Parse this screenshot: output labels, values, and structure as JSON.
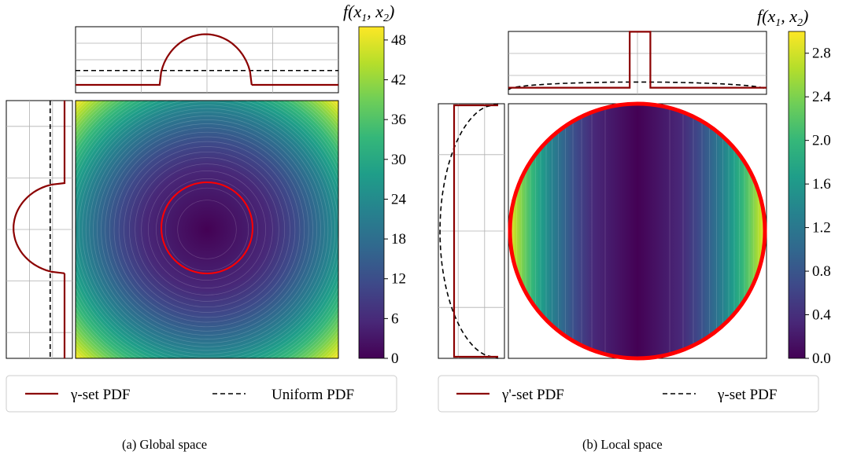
{
  "colormap": [
    "#440154",
    "#482878",
    "#3e4989",
    "#31688e",
    "#26828e",
    "#1f9e89",
    "#35b779",
    "#6ece58",
    "#b5de2b",
    "#fde725"
  ],
  "line_colors": {
    "red_pdf": "#8b0000",
    "boundary": "#ff0000",
    "dashed": "#000000"
  },
  "chart_data": [
    {
      "panel": "a",
      "caption": "(a) Global space",
      "type": "heatmap",
      "colorbar": {
        "label": "f(x1, x2)",
        "ticks": [
          "0",
          "6",
          "12",
          "18",
          "24",
          "30",
          "36",
          "42",
          "48"
        ],
        "range": [
          0,
          50
        ]
      },
      "legend": [
        {
          "label": "γ-set PDF",
          "style": "solid"
        },
        {
          "label": "Uniform PDF",
          "style": "dashed"
        }
      ],
      "marginal_top": {
        "uniform_level": 0.3,
        "gamma_set_support": [
          0.32,
          0.67
        ],
        "gamma_set_shape": "semicircle",
        "gamma_set_peak": 0.92
      },
      "marginal_left": {
        "uniform_level": 0.3,
        "gamma_set_support": [
          0.32,
          0.67
        ],
        "gamma_set_shape": "semicircle",
        "gamma_set_peak": 0.9
      },
      "gamma_set_region": "circle",
      "gamma_set_radius_fraction": 0.17,
      "grid": true
    },
    {
      "panel": "b",
      "caption": "(b) Local space",
      "type": "heatmap",
      "colorbar": {
        "label": "f(x1, x2)",
        "ticks": [
          "0.0",
          "0.4",
          "0.8",
          "1.2",
          "1.6",
          "2.0",
          "2.4",
          "2.8"
        ],
        "range": [
          0,
          3
        ]
      },
      "legend": [
        {
          "label": "γ'-set PDF",
          "style": "solid"
        },
        {
          "label": "γ-set PDF",
          "style": "dashed"
        }
      ],
      "marginal_top": {
        "gamma_prime_support": [
          0.47,
          0.55
        ],
        "gamma_prime_peak": 0.92,
        "gamma_prime_base": 0.03,
        "gamma_dashed_peak": 0.12
      },
      "marginal_left": {
        "gamma_prime_level": 0.05,
        "gamma_dashed_peak": 0.88
      },
      "domain_region": "circle",
      "grid": true
    }
  ]
}
